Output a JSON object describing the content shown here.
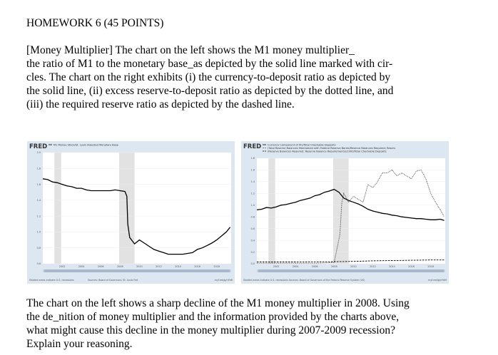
{
  "title": "HOMEWORK 6 (45 POINTS)",
  "paragraph1": [
    "[Money Multiplier] The chart on the left shows the M1 money multiplier_",
    "the ratio of M1 to the monetary base_as depicted by the solid line marked with cir-",
    "cles. The chart on the right exhibits (i) the currency-to-deposit ratio as depicted by",
    "the solid line, (ii) excess reserve-to-deposit ratio as depicted by the dotted line, and",
    "(iii) the required reserve ratio as depicted by the dashed line."
  ],
  "paragraph2": [
    "The chart on the left shows a sharp decline of the M1 money multiplier in 2008. Using",
    "the de_nition of money multiplier and the information provided by the charts above,",
    "what might cause this decline in the money multiplier during 2007-2009 recession?",
    "Explain your reasoning."
  ],
  "chart_data": [
    {
      "type": "line",
      "brand": "FRED",
      "legend": [
        "M1 Money Stock/St. Louis Adjusted Monetary Base"
      ],
      "y_ticks": [
        "2.0",
        "1.8",
        "1.6",
        "1.4",
        "1.2",
        "1.0",
        "0.8",
        "0.6"
      ],
      "x_ticks": [
        "2002",
        "2004",
        "2006",
        "2008",
        "2010",
        "2012",
        "2014",
        "2016",
        "2018"
      ],
      "ylim": [
        0.6,
        2.0
      ],
      "xlim": [
        2000,
        2019.5
      ],
      "recessions": [
        [
          2001.2,
          2001.9
        ],
        [
          2007.9,
          2009.5
        ]
      ],
      "footer_left": "Shaded areas indicate U.S. recessions",
      "footer_mid": "Sources: Board of Governors; St. Louis Fed",
      "footer_right": "myf.red/g/nYbR",
      "series": [
        {
          "name": "M1 Money Stock/St. Louis Adjusted Monetary Base",
          "style": "solid",
          "x": [
            2000.0,
            2000.5,
            2001.0,
            2001.5,
            2002.0,
            2002.5,
            2003.0,
            2003.5,
            2004.0,
            2004.5,
            2005.0,
            2005.5,
            2006.0,
            2006.5,
            2007.0,
            2007.5,
            2008.0,
            2008.5,
            2008.7,
            2008.8,
            2009.0,
            2009.5,
            2010.0,
            2010.5,
            2011.0,
            2011.5,
            2012.0,
            2012.5,
            2013.0,
            2013.5,
            2014.0,
            2014.5,
            2015.0,
            2015.5,
            2016.0,
            2016.5,
            2017.0,
            2017.5,
            2018.0,
            2018.5,
            2019.0,
            2019.4
          ],
          "values": [
            1.67,
            1.66,
            1.63,
            1.62,
            1.6,
            1.58,
            1.57,
            1.55,
            1.55,
            1.53,
            1.52,
            1.52,
            1.52,
            1.52,
            1.52,
            1.53,
            1.52,
            1.51,
            1.45,
            1.1,
            0.93,
            0.85,
            0.9,
            0.86,
            0.82,
            0.78,
            0.76,
            0.74,
            0.72,
            0.72,
            0.72,
            0.72,
            0.73,
            0.74,
            0.78,
            0.8,
            0.83,
            0.86,
            0.9,
            0.95,
            1.0,
            1.06
          ]
        }
      ]
    },
    {
      "type": "line",
      "brand": "FRED",
      "legend": [
        "Currency Component of M1/Total Checkable Deposits",
        "(Total Reserve Balances Maintained with Federal Reserve Banks/Reserve Balances Required; Reserve Balance Requirements)/1000/Total Checkable Deposits",
        "(Reserve Balances Required: Reserve Balance Requirements)/1000/Total Checkable Deposits"
      ],
      "y_ticks": [
        "1.8",
        "1.6",
        "1.4",
        "1.2",
        "1.0",
        "0.8",
        "0.6",
        "0.4",
        "0.2",
        "0.0"
      ],
      "x_ticks": [
        "2002",
        "2004",
        "2006",
        "2008",
        "2010",
        "2012",
        "2014",
        "2016",
        "2018"
      ],
      "ylim": [
        0.0,
        1.8
      ],
      "xlim": [
        2000,
        2019.5
      ],
      "recessions": [
        [
          2001.2,
          2001.9
        ],
        [
          2007.9,
          2009.5
        ]
      ],
      "footer_left": "Shaded areas indicate U.S. recessions",
      "footer_mid": "Sources: Board of Governors of the Federal Reserve System (US)",
      "footer_right": "myf.red/g/nYbM",
      "series": [
        {
          "name": "Currency Component of M1/Total Checkable Deposits",
          "style": "solid",
          "x": [
            2000.0,
            2000.5,
            2001.0,
            2001.5,
            2002.0,
            2002.5,
            2003.0,
            2003.5,
            2004.0,
            2004.5,
            2005.0,
            2005.5,
            2006.0,
            2006.5,
            2007.0,
            2007.5,
            2008.0,
            2008.5,
            2009.0,
            2009.5,
            2010.0,
            2010.5,
            2011.0,
            2011.5,
            2012.0,
            2012.5,
            2013.0,
            2013.5,
            2014.0,
            2014.5,
            2015.0,
            2015.5,
            2016.0,
            2016.5,
            2017.0,
            2017.5,
            2018.0,
            2018.5,
            2019.0,
            2019.4
          ],
          "values": [
            0.92,
            0.93,
            0.96,
            0.95,
            0.97,
            1.0,
            1.01,
            1.03,
            1.05,
            1.08,
            1.1,
            1.12,
            1.16,
            1.18,
            1.22,
            1.24,
            1.27,
            1.22,
            1.12,
            1.08,
            1.05,
            1.02,
            0.98,
            0.93,
            0.9,
            0.88,
            0.86,
            0.85,
            0.83,
            0.82,
            0.8,
            0.79,
            0.78,
            0.77,
            0.77,
            0.76,
            0.75,
            0.75,
            0.76,
            0.74
          ]
        },
        {
          "name": "Excess reserve-to-deposit ratio",
          "style": "dotted",
          "x": [
            2000.0,
            2002.0,
            2004.0,
            2006.0,
            2008.0,
            2008.6,
            2008.8,
            2009.0,
            2009.5,
            2010.0,
            2010.5,
            2011.0,
            2011.5,
            2012.0,
            2012.5,
            2013.0,
            2013.5,
            2014.0,
            2014.5,
            2015.0,
            2015.5,
            2016.0,
            2016.5,
            2017.0,
            2017.5,
            2018.0,
            2018.5,
            2019.0,
            2019.4
          ],
          "values": [
            0.01,
            0.01,
            0.01,
            0.01,
            0.02,
            0.5,
            1.05,
            1.2,
            1.05,
            1.15,
            1.1,
            1.05,
            1.35,
            1.3,
            1.4,
            1.55,
            1.55,
            1.6,
            1.5,
            1.55,
            1.5,
            1.45,
            1.58,
            1.6,
            1.45,
            1.2,
            1.05,
            0.92,
            0.8
          ]
        },
        {
          "name": "Required reserve ratio",
          "style": "dashed",
          "x": [
            2000.0,
            2004.0,
            2008.0,
            2010.0,
            2012.0,
            2014.0,
            2016.0,
            2018.0,
            2019.4
          ],
          "values": [
            0.03,
            0.03,
            0.035,
            0.04,
            0.05,
            0.055,
            0.06,
            0.065,
            0.065
          ]
        }
      ]
    }
  ]
}
